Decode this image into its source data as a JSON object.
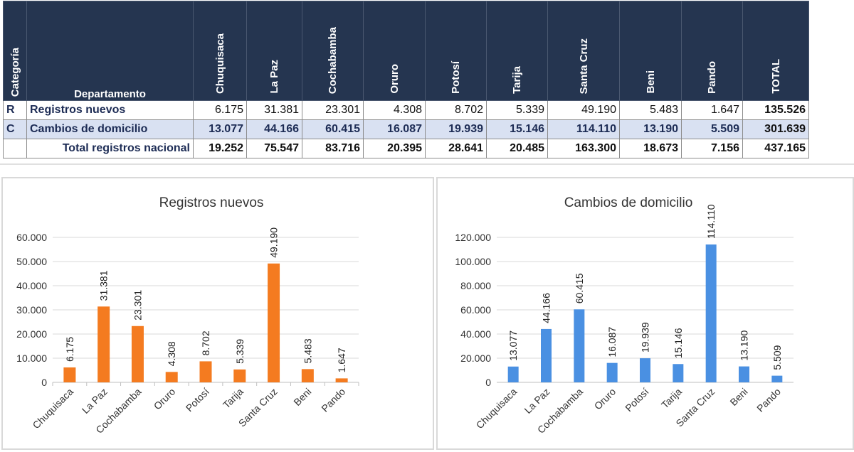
{
  "table": {
    "header_category": "Categoría",
    "header_department": "Departamento",
    "departments": [
      "Chuquisaca",
      "La Paz",
      "Cochabamba",
      "Oruro",
      "Potosí",
      "Tarija",
      "Santa Cruz",
      "Beni",
      "Pando"
    ],
    "header_total": "TOTAL",
    "rows": [
      {
        "code": "R",
        "label": "Registros nuevos",
        "values": [
          "6.175",
          "31.381",
          "23.301",
          "4.308",
          "8.702",
          "5.339",
          "49.190",
          "5.483",
          "1.647"
        ],
        "total": "135.526"
      },
      {
        "code": "C",
        "label": "Cambios de domicilio",
        "values": [
          "13.077",
          "44.166",
          "60.415",
          "16.087",
          "19.939",
          "15.146",
          "114.110",
          "13.190",
          "5.509"
        ],
        "total": "301.639"
      },
      {
        "code": "",
        "label": "Total registros nacional",
        "values": [
          "19.252",
          "75.547",
          "83.716",
          "20.395",
          "28.641",
          "20.485",
          "163.300",
          "18.673",
          "7.156"
        ],
        "total": "437.165"
      }
    ],
    "colors": {
      "header_bg": "#253550",
      "highlight_row": "#d9e1f2",
      "label_text": "#1d2c55"
    }
  },
  "chart_data": [
    {
      "type": "bar",
      "title": "Registros nuevos",
      "categories": [
        "Chuquisaca",
        "La Paz",
        "Cochabamba",
        "Oruro",
        "Potosí",
        "Tarija",
        "Santa Cruz",
        "Beni",
        "Pando"
      ],
      "values": [
        6175,
        31381,
        23301,
        4308,
        8702,
        5339,
        49190,
        5483,
        1647
      ],
      "data_labels": [
        "6.175",
        "31.381",
        "23.301",
        "4.308",
        "8.702",
        "5.339",
        "49.190",
        "5.483",
        "1.647"
      ],
      "yticks": [
        0,
        10000,
        20000,
        30000,
        40000,
        50000,
        60000
      ],
      "ytick_labels": [
        "0",
        "10.000",
        "20.000",
        "30.000",
        "40.000",
        "50.000",
        "60.000"
      ],
      "ylim": [
        0,
        60000
      ],
      "xlabel": "",
      "ylabel": "",
      "grid": true,
      "legend": "none",
      "color": "#f47b20"
    },
    {
      "type": "bar",
      "title": "Cambios de domicilio",
      "categories": [
        "Chuquisaca",
        "La Paz",
        "Cochabamba",
        "Oruro",
        "Potosí",
        "Tarija",
        "Santa Cruz",
        "Beni",
        "Pando"
      ],
      "values": [
        13077,
        44166,
        60415,
        16087,
        19939,
        15146,
        114110,
        13190,
        5509
      ],
      "data_labels": [
        "13.077",
        "44.166",
        "60.415",
        "16.087",
        "19.939",
        "15.146",
        "114.110",
        "13.190",
        "5.509"
      ],
      "yticks": [
        0,
        20000,
        40000,
        60000,
        80000,
        100000,
        120000
      ],
      "ytick_labels": [
        "0",
        "20.000",
        "40.000",
        "60.000",
        "80.000",
        "100.000",
        "120.000"
      ],
      "ylim": [
        0,
        120000
      ],
      "xlabel": "",
      "ylabel": "",
      "grid": true,
      "legend": "none",
      "color": "#4a90e2"
    }
  ]
}
